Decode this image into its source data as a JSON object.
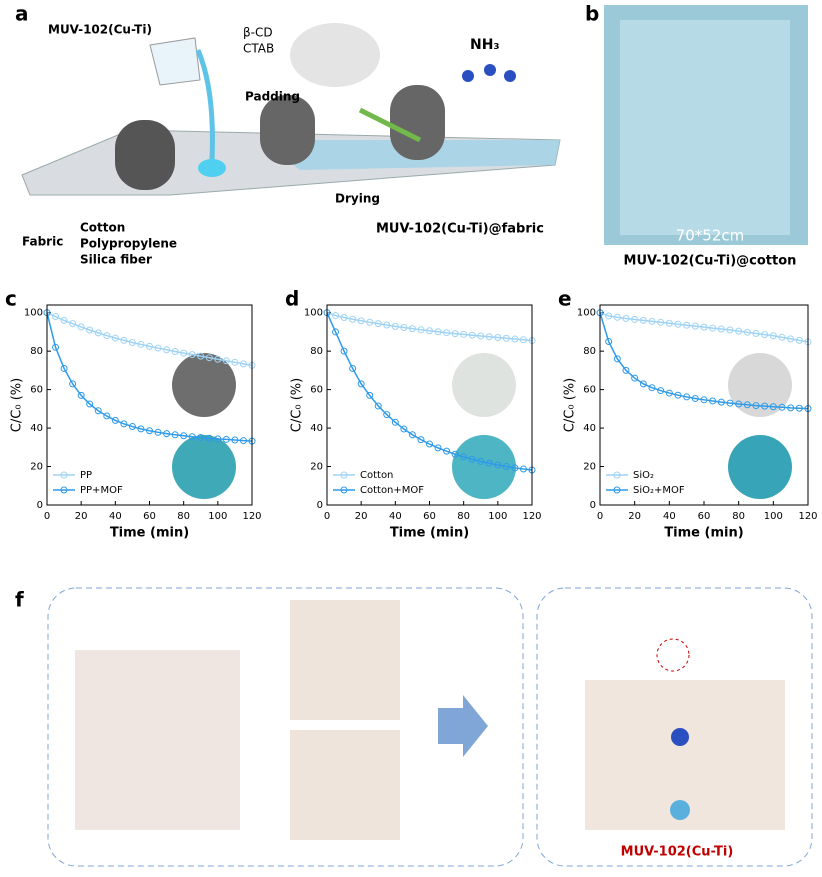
{
  "panels": {
    "a": {
      "label": "a",
      "mof": "MUV-102(Cu-Ti)",
      "additive1": "β-CD",
      "additive2": "CTAB",
      "padding": "Padding",
      "gas": "NH₃",
      "drying": "Drying",
      "product": "MUV-102(Cu-Ti)@fabric",
      "fabric": "Fabric",
      "fabrics": [
        "Cotton",
        "Polypropylene",
        "Silica fiber"
      ]
    },
    "b": {
      "label": "b",
      "size": "70*52cm",
      "caption": "MUV-102(Cu-Ti)@cotton"
    },
    "f": {
      "label": "f",
      "caption": "MUV-102(Cu-Ti)"
    }
  },
  "chart_data": [
    {
      "type": "line",
      "panel": "c",
      "xlabel": "Time (min)",
      "ylabel": "C/C₀ (%)",
      "legend": "lower left",
      "x": [
        0,
        5,
        10,
        15,
        20,
        25,
        30,
        35,
        40,
        45,
        50,
        55,
        60,
        65,
        70,
        75,
        80,
        85,
        90,
        95,
        100,
        105,
        110,
        115,
        120
      ],
      "xlim": [
        0,
        120
      ],
      "ylim": [
        0,
        104
      ],
      "xticks": [
        0,
        20,
        40,
        60,
        80,
        100,
        120
      ],
      "yticks": [
        0,
        20,
        40,
        60,
        80,
        100
      ],
      "series": [
        {
          "name": "PP",
          "color": "#9fd3f5",
          "values": [
            100,
            98,
            96,
            94.3,
            92.6,
            91,
            89.5,
            88.1,
            86.8,
            85.6,
            84.5,
            83.5,
            82.5,
            81.6,
            80.7,
            79.8,
            79,
            78.2,
            77.4,
            76.6,
            75.8,
            75,
            74.2,
            73.4,
            72.6
          ]
        },
        {
          "name": "PP+MOF",
          "color": "#2f9ae8",
          "values": [
            100,
            82,
            71,
            63,
            57,
            52.5,
            49,
            46.3,
            44,
            42.2,
            40.8,
            39.6,
            38.6,
            37.8,
            37.1,
            36.5,
            36,
            35.5,
            35.1,
            34.7,
            34.4,
            34.1,
            33.8,
            33.5,
            33.2
          ]
        }
      ]
    },
    {
      "type": "line",
      "panel": "d",
      "xlabel": "Time (min)",
      "ylabel": "C/C₀ (%)",
      "legend": "lower left",
      "x": [
        0,
        5,
        10,
        15,
        20,
        25,
        30,
        35,
        40,
        45,
        50,
        55,
        60,
        65,
        70,
        75,
        80,
        85,
        90,
        95,
        100,
        105,
        110,
        115,
        120
      ],
      "xlim": [
        0,
        120
      ],
      "ylim": [
        0,
        104
      ],
      "xticks": [
        0,
        20,
        40,
        60,
        80,
        100,
        120
      ],
      "yticks": [
        0,
        20,
        40,
        60,
        80,
        100
      ],
      "series": [
        {
          "name": "Cotton",
          "color": "#9fd3f5",
          "values": [
            100,
            98.5,
            97.5,
            96.6,
            95.8,
            95,
            94.3,
            93.6,
            92.9,
            92.3,
            91.7,
            91.1,
            90.6,
            90.1,
            89.6,
            89.1,
            88.7,
            88.3,
            87.9,
            87.5,
            87.1,
            86.7,
            86.3,
            85.9,
            85.5
          ]
        },
        {
          "name": "Cotton+MOF",
          "color": "#2f9ae8",
          "values": [
            100,
            90,
            80,
            71,
            63,
            57,
            51.5,
            47,
            43,
            39.5,
            36.5,
            34,
            31.7,
            29.7,
            28,
            26.4,
            25,
            23.8,
            22.7,
            21.7,
            20.8,
            20,
            19.3,
            18.7,
            18.2
          ]
        }
      ]
    },
    {
      "type": "line",
      "panel": "e",
      "xlabel": "Time (min)",
      "ylabel": "C/C₀ (%)",
      "legend": "lower left",
      "x": [
        0,
        5,
        10,
        15,
        20,
        25,
        30,
        35,
        40,
        45,
        50,
        55,
        60,
        65,
        70,
        75,
        80,
        85,
        90,
        95,
        100,
        105,
        110,
        115,
        120
      ],
      "xlim": [
        0,
        120
      ],
      "ylim": [
        0,
        104
      ],
      "xticks": [
        0,
        20,
        40,
        60,
        80,
        100,
        120
      ],
      "yticks": [
        0,
        20,
        40,
        60,
        80,
        100
      ],
      "series": [
        {
          "name": "SiO₂",
          "color": "#9fd3f5",
          "values": [
            100,
            98.3,
            97.6,
            97,
            96.5,
            96,
            95.5,
            95,
            94.5,
            94,
            93.5,
            93,
            92.5,
            92,
            91.5,
            91,
            90.4,
            89.8,
            89.2,
            88.6,
            88,
            87.2,
            86.4,
            85.6,
            84.8
          ]
        },
        {
          "name": "SiO₂+MOF",
          "color": "#2f9ae8",
          "values": [
            100,
            85,
            76,
            70,
            66,
            63,
            61,
            59.5,
            58.2,
            57.1,
            56.2,
            55.4,
            54.7,
            54.1,
            53.5,
            53,
            52.5,
            52.1,
            51.7,
            51.4,
            51.1,
            50.8,
            50.5,
            50.3,
            50.1
          ]
        }
      ]
    }
  ]
}
